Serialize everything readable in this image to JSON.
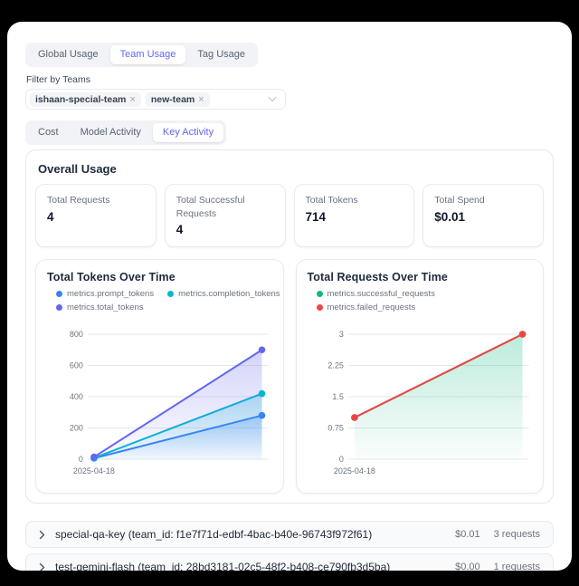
{
  "colors": {
    "accent": "#6366f1",
    "tab_inactive_text": "#5a6472",
    "grid": "#e5e7eb"
  },
  "tabs_primary": {
    "items": [
      {
        "label": "Global Usage",
        "active": false
      },
      {
        "label": "Team Usage",
        "active": true
      },
      {
        "label": "Tag Usage",
        "active": false
      }
    ]
  },
  "filter": {
    "label": "Filter by Teams",
    "tags": [
      {
        "label": "ishaan-special-team"
      },
      {
        "label": "new-team"
      }
    ],
    "remove_icon": "×"
  },
  "tabs_secondary": {
    "items": [
      {
        "label": "Cost",
        "active": false
      },
      {
        "label": "Model Activity",
        "active": false
      },
      {
        "label": "Key Activity",
        "active": true
      }
    ]
  },
  "overall": {
    "title": "Overall Usage",
    "stats": [
      {
        "label": "Total Requests",
        "value": "4"
      },
      {
        "label": "Total Successful Requests",
        "value": "4"
      },
      {
        "label": "Total Tokens",
        "value": "714"
      },
      {
        "label": "Total Spend",
        "value": "$0.01"
      }
    ]
  },
  "chart_data": [
    {
      "type": "line",
      "title": "Total Tokens Over Time",
      "x_tick_labels": [
        "2025-04-18"
      ],
      "ylim": [
        0,
        800
      ],
      "y_ticks": [
        "0",
        "200",
        "400",
        "600",
        "800"
      ],
      "grid": true,
      "legend_position": "top",
      "series": [
        {
          "name": "metrics.prompt_tokens",
          "color": "#3b82f6",
          "values": [
            6,
            280
          ],
          "area": true
        },
        {
          "name": "metrics.completion_tokens",
          "color": "#06b6d4",
          "values": [
            8,
            420
          ],
          "area": true
        },
        {
          "name": "metrics.total_tokens",
          "color": "#6366f1",
          "values": [
            14,
            700
          ],
          "area": true
        }
      ],
      "legend_rows": [
        [
          0,
          1
        ],
        [
          2
        ]
      ]
    },
    {
      "type": "line",
      "title": "Total Requests Over Time",
      "x_tick_labels": [
        "2025-04-18"
      ],
      "ylim": [
        0,
        3
      ],
      "y_ticks": [
        "0",
        "0.75",
        "1.5",
        "2.25",
        "3"
      ],
      "grid": true,
      "legend_position": "top",
      "series": [
        {
          "name": "metrics.successful_requests",
          "color": "#10b981",
          "values": [
            1,
            3
          ],
          "area": true
        },
        {
          "name": "metrics.failed_requests",
          "color": "#ef4444",
          "values": [
            1,
            3
          ],
          "area": false
        }
      ],
      "legend_rows": [
        [
          0
        ],
        [
          1
        ]
      ]
    }
  ],
  "keys": [
    {
      "name": "special-qa-key (team_id: f1e7f71d-edbf-4bac-b40e-96743f972f61)",
      "spend": "$0.01",
      "requests": "3 requests"
    },
    {
      "name": "test-gemini-flash (team_id: 28bd3181-02c5-48f2-b408-ce790fb3d5ba)",
      "spend": "$0.00",
      "requests": "1 requests"
    }
  ]
}
